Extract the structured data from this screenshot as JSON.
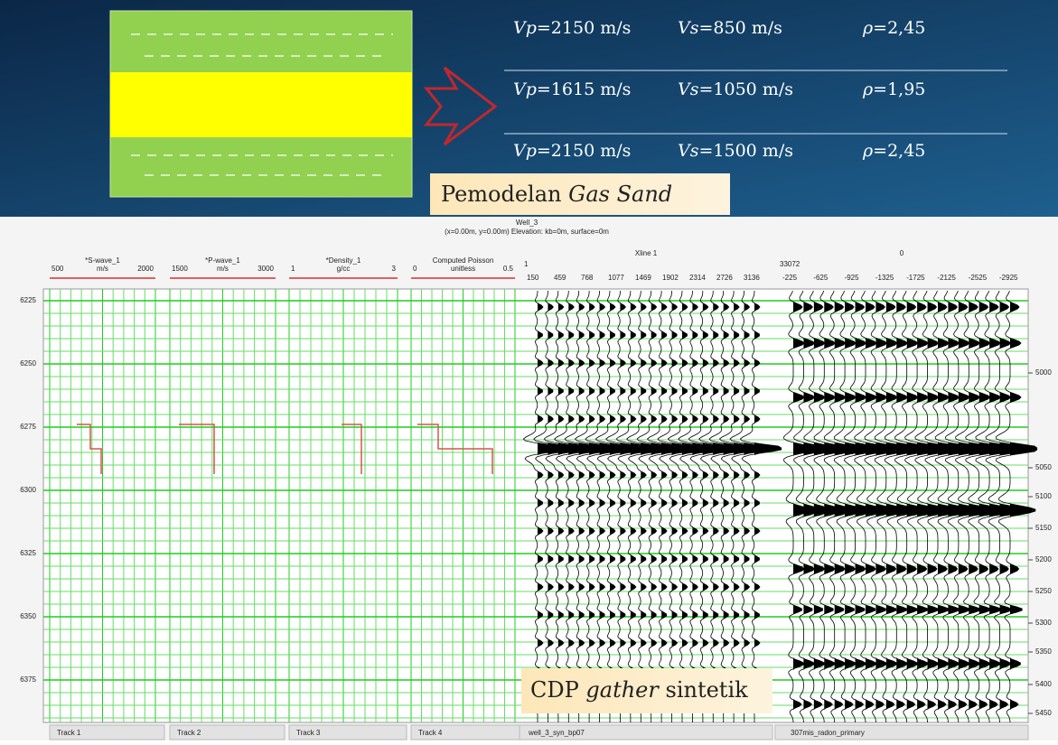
{
  "model": {
    "rows": [
      {
        "vp_symbol": "Vp",
        "vp": "=2150 m/s",
        "vs_symbol": "Vs",
        "vs": "=850 m/s",
        "rho_symbol": "ρ",
        "rho": "=2,45"
      },
      {
        "vp_symbol": "Vp",
        "vp": "=1615 m/s",
        "vs_symbol": "Vs",
        "vs": "=1050 m/s",
        "rho_symbol": "ρ",
        "rho": "=1,95"
      },
      {
        "vp_symbol": "Vp",
        "vp": "=2150 m/s",
        "vs_symbol": "Vs",
        "vs": "=1500 m/s",
        "rho_symbol": "ρ",
        "rho": "=2,45"
      }
    ],
    "caption": {
      "plain": "Pemodelan",
      "italic": "Gas Sand"
    }
  },
  "panel": {
    "well": "Well_3",
    "location": "(x=0.00m, y=0.00m) Elevation: kb=0m, surface=0m",
    "tracks": [
      {
        "name": "*S-wave_1",
        "unit": "m/s",
        "min": "500",
        "max": "2000",
        "footer": "Track 1"
      },
      {
        "name": "*P-wave_1",
        "unit": "m/s",
        "min": "1500",
        "max": "3000",
        "footer": "Track 2"
      },
      {
        "name": "*Density_1",
        "unit": "g/cc",
        "min": "1",
        "max": "3",
        "footer": "Track 3"
      },
      {
        "name": "Computed Poisson",
        "unit": "unitless",
        "min": "0",
        "max": "0.5",
        "footer": "Track 4"
      }
    ],
    "xline": {
      "name": "Xline 1",
      "first": "1",
      "offsets": [
        "150",
        "459",
        "768",
        "1077",
        "1469",
        "1902",
        "2314",
        "2726",
        "3136"
      ],
      "footer": "well_3_syn_bp07"
    },
    "gather": {
      "name": "0",
      "first": "33072",
      "offsets": [
        "-225",
        "-625",
        "-925",
        "-1325",
        "-1725",
        "-2125",
        "-2525",
        "-2925"
      ],
      "footer": "307mis_radon_primary"
    },
    "time_ticks": [
      "6225",
      "6250",
      "6275",
      "6300",
      "6325",
      "6350",
      "6375"
    ],
    "depth_ticks": [
      "5000",
      "5050",
      "5100",
      "5150",
      "5200",
      "5250",
      "5300",
      "5350",
      "5400",
      "5450"
    ],
    "annotation": {
      "plain1": "CDP",
      "italic": "gather",
      "plain2": "sintetik"
    }
  }
}
